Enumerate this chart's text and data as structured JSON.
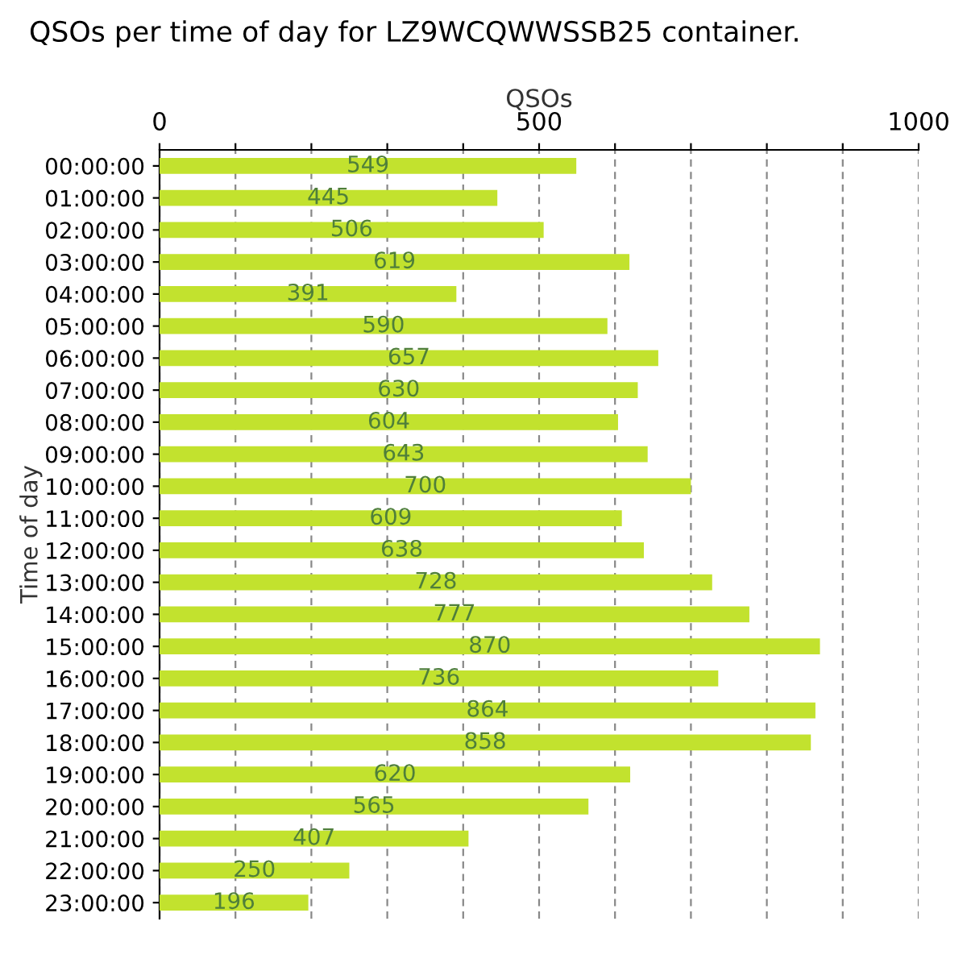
{
  "chart_data": {
    "type": "bar",
    "orientation": "horizontal",
    "title": "QSOs per time of day for LZ9WCQWWSSB25 container.",
    "xlabel": "QSOs",
    "ylabel": "Time of day",
    "categories": [
      "00:00:00",
      "01:00:00",
      "02:00:00",
      "03:00:00",
      "04:00:00",
      "05:00:00",
      "06:00:00",
      "07:00:00",
      "08:00:00",
      "09:00:00",
      "10:00:00",
      "11:00:00",
      "12:00:00",
      "13:00:00",
      "14:00:00",
      "15:00:00",
      "16:00:00",
      "17:00:00",
      "18:00:00",
      "19:00:00",
      "20:00:00",
      "21:00:00",
      "22:00:00",
      "23:00:00"
    ],
    "values": [
      549,
      445,
      506,
      619,
      391,
      590,
      657,
      630,
      604,
      643,
      700,
      609,
      638,
      728,
      777,
      870,
      736,
      864,
      858,
      620,
      565,
      407,
      250,
      196
    ],
    "color": "#c2e22e",
    "data_labels": true,
    "xlim": [
      0,
      1000
    ],
    "xticks": [
      0,
      {
        "value": 100,
        "label": null
      },
      {
        "value": 200,
        "label": null
      },
      {
        "value": 300,
        "label": null
      },
      {
        "value": 400,
        "label": null
      },
      500,
      {
        "value": 600,
        "label": null
      },
      {
        "value": 700,
        "label": null
      },
      {
        "value": 800,
        "label": null
      },
      {
        "value": 900,
        "label": null
      },
      1000
    ],
    "grid": "x"
  }
}
